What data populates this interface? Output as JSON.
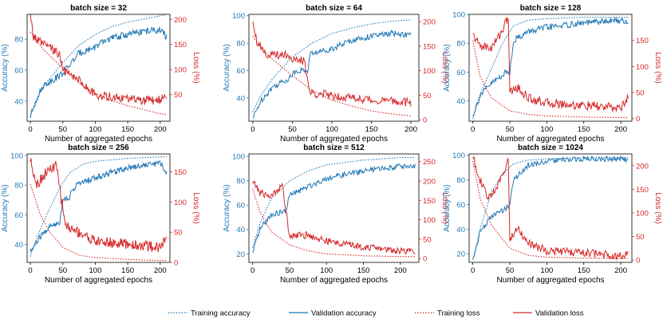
{
  "chart_data": {
    "type": "line",
    "shared_xlabel": "Number of aggregated epochs",
    "shared_y_left_label": "Accuracy (%)",
    "shared_y_right_label": "Loss (%)",
    "legend": [
      {
        "name": "Training accuracy",
        "color": "#1f77b4",
        "dash": "dotted"
      },
      {
        "name": "Validation accuracy",
        "color": "#1f77b4",
        "dash": "solid"
      },
      {
        "name": "Training loss",
        "color": "#d62728",
        "dash": "dotted"
      },
      {
        "name": "Validation loss",
        "color": "#d62728",
        "dash": "solid"
      }
    ],
    "legend_placement": "bottom-center",
    "grid": false,
    "colors": {
      "accuracy": "#1f77b4",
      "loss": "#d62728"
    },
    "panels": [
      {
        "title": "batch size = 32",
        "xlim": [
          -5,
          215
        ],
        "xticks": [
          0,
          50,
          100,
          150,
          200
        ],
        "ylim_left": [
          27,
          96
        ],
        "yticks_left": [
          40,
          60,
          80
        ],
        "ylim_right": [
          -3,
          210
        ],
        "yticks_right": [
          50,
          100,
          150,
          200
        ],
        "training_accuracy": [
          [
            0,
            30
          ],
          [
            10,
            42
          ],
          [
            25,
            52
          ],
          [
            50,
            65
          ],
          [
            75,
            76
          ],
          [
            100,
            83
          ],
          [
            125,
            88
          ],
          [
            150,
            91
          ],
          [
            175,
            93
          ],
          [
            200,
            95
          ],
          [
            210,
            96
          ]
        ],
        "validation_accuracy": [
          [
            0,
            30
          ],
          [
            10,
            42
          ],
          [
            20,
            50
          ],
          [
            35,
            54
          ],
          [
            50,
            58
          ],
          [
            60,
            63
          ],
          [
            75,
            71
          ],
          [
            100,
            75
          ],
          [
            120,
            80
          ],
          [
            150,
            83
          ],
          [
            175,
            85
          ],
          [
            200,
            86
          ],
          [
            210,
            81
          ]
        ],
        "training_loss": [
          [
            0,
            175
          ],
          [
            20,
            140
          ],
          [
            40,
            115
          ],
          [
            60,
            90
          ],
          [
            80,
            68
          ],
          [
            100,
            52
          ],
          [
            125,
            38
          ],
          [
            150,
            28
          ],
          [
            175,
            20
          ],
          [
            200,
            12
          ],
          [
            210,
            10
          ]
        ],
        "validation_loss": [
          [
            0,
            205
          ],
          [
            5,
            165
          ],
          [
            20,
            150
          ],
          [
            35,
            140
          ],
          [
            45,
            130
          ],
          [
            50,
            100
          ],
          [
            60,
            90
          ],
          [
            75,
            80
          ],
          [
            90,
            60
          ],
          [
            100,
            50
          ],
          [
            125,
            45
          ],
          [
            150,
            42
          ],
          [
            175,
            38
          ],
          [
            200,
            40
          ],
          [
            210,
            48
          ]
        ]
      },
      {
        "title": "batch size = 64",
        "xlim": [
          -5,
          210
        ],
        "xticks": [
          0,
          50,
          100,
          150,
          200
        ],
        "ylim_left": [
          23,
          101
        ],
        "yticks_left": [
          40,
          60,
          80,
          100
        ],
        "ylim_right": [
          -3,
          215
        ],
        "yticks_right": [
          0,
          50,
          100,
          150,
          200
        ],
        "training_accuracy": [
          [
            0,
            30
          ],
          [
            10,
            42
          ],
          [
            25,
            54
          ],
          [
            50,
            70
          ],
          [
            75,
            80
          ],
          [
            100,
            87
          ],
          [
            125,
            91
          ],
          [
            150,
            94
          ],
          [
            175,
            96
          ],
          [
            200,
            97
          ]
        ],
        "validation_accuracy": [
          [
            0,
            25
          ],
          [
            10,
            38
          ],
          [
            25,
            48
          ],
          [
            45,
            54
          ],
          [
            55,
            60
          ],
          [
            70,
            60
          ],
          [
            72,
            72
          ],
          [
            100,
            76
          ],
          [
            125,
            82
          ],
          [
            150,
            85
          ],
          [
            175,
            87
          ],
          [
            200,
            86
          ]
        ],
        "training_loss": [
          [
            0,
            170
          ],
          [
            20,
            130
          ],
          [
            50,
            90
          ],
          [
            75,
            60
          ],
          [
            100,
            40
          ],
          [
            125,
            28
          ],
          [
            150,
            18
          ],
          [
            175,
            12
          ],
          [
            200,
            8
          ]
        ],
        "validation_loss": [
          [
            0,
            205
          ],
          [
            5,
            160
          ],
          [
            20,
            130
          ],
          [
            40,
            135
          ],
          [
            55,
            120
          ],
          [
            65,
            120
          ],
          [
            72,
            55
          ],
          [
            100,
            50
          ],
          [
            125,
            45
          ],
          [
            150,
            40
          ],
          [
            175,
            38
          ],
          [
            200,
            35
          ]
        ]
      },
      {
        "title": "batch size = 128",
        "xlim": [
          -5,
          215
        ],
        "xticks": [
          0,
          50,
          100,
          150,
          200
        ],
        "ylim_left": [
          26,
          100
        ],
        "yticks_left": [
          40,
          60,
          80,
          100
        ],
        "ylim_right": [
          -5,
          200
        ],
        "yticks_right": [
          0,
          50,
          100,
          150
        ],
        "training_accuracy": [
          [
            0,
            28
          ],
          [
            10,
            45
          ],
          [
            25,
            62
          ],
          [
            40,
            80
          ],
          [
            55,
            92
          ],
          [
            75,
            96
          ],
          [
            100,
            97
          ],
          [
            150,
            98
          ],
          [
            200,
            98
          ],
          [
            210,
            98
          ]
        ],
        "validation_accuracy": [
          [
            0,
            30
          ],
          [
            10,
            44
          ],
          [
            25,
            52
          ],
          [
            45,
            60
          ],
          [
            50,
            60
          ],
          [
            55,
            82
          ],
          [
            75,
            88
          ],
          [
            100,
            91
          ],
          [
            150,
            94
          ],
          [
            200,
            96
          ],
          [
            210,
            94
          ]
        ],
        "training_loss": [
          [
            0,
            150
          ],
          [
            10,
            80
          ],
          [
            25,
            40
          ],
          [
            50,
            15
          ],
          [
            75,
            8
          ],
          [
            100,
            5
          ],
          [
            150,
            3
          ],
          [
            200,
            2
          ],
          [
            210,
            2
          ]
        ],
        "validation_loss": [
          [
            0,
            160
          ],
          [
            10,
            140
          ],
          [
            25,
            135
          ],
          [
            40,
            170
          ],
          [
            48,
            195
          ],
          [
            50,
            50
          ],
          [
            60,
            60
          ],
          [
            75,
            40
          ],
          [
            100,
            30
          ],
          [
            150,
            25
          ],
          [
            200,
            20
          ],
          [
            210,
            40
          ]
        ]
      },
      {
        "title": "batch size = 256",
        "xlim": [
          -5,
          215
        ],
        "xticks": [
          0,
          50,
          100,
          150,
          200
        ],
        "ylim_left": [
          28,
          101
        ],
        "yticks_left": [
          40,
          60,
          80,
          100
        ],
        "ylim_right": [
          0,
          180
        ],
        "yticks_right": [
          0,
          50,
          100,
          150
        ],
        "training_accuracy": [
          [
            0,
            32
          ],
          [
            10,
            45
          ],
          [
            25,
            60
          ],
          [
            45,
            78
          ],
          [
            60,
            88
          ],
          [
            80,
            94
          ],
          [
            100,
            96
          ],
          [
            150,
            98
          ],
          [
            200,
            99
          ],
          [
            210,
            99
          ]
        ],
        "validation_accuracy": [
          [
            0,
            35
          ],
          [
            15,
            45
          ],
          [
            30,
            52
          ],
          [
            45,
            55
          ],
          [
            50,
            70
          ],
          [
            60,
            72
          ],
          [
            70,
            80
          ],
          [
            100,
            85
          ],
          [
            150,
            92
          ],
          [
            200,
            95
          ],
          [
            210,
            88
          ]
        ],
        "training_loss": [
          [
            0,
            130
          ],
          [
            15,
            80
          ],
          [
            30,
            50
          ],
          [
            50,
            25
          ],
          [
            75,
            12
          ],
          [
            100,
            8
          ],
          [
            150,
            5
          ],
          [
            200,
            3
          ],
          [
            210,
            3
          ]
        ],
        "validation_loss": [
          [
            0,
            170
          ],
          [
            10,
            130
          ],
          [
            25,
            150
          ],
          [
            40,
            160
          ],
          [
            50,
            90
          ],
          [
            55,
            60
          ],
          [
            75,
            50
          ],
          [
            100,
            35
          ],
          [
            150,
            30
          ],
          [
            200,
            25
          ],
          [
            210,
            40
          ]
        ]
      },
      {
        "title": "batch size = 512",
        "xlim": [
          -5,
          225
        ],
        "xticks": [
          0,
          50,
          100,
          150,
          200
        ],
        "ylim_left": [
          13,
          102
        ],
        "yticks_left": [
          20,
          40,
          60,
          80,
          100
        ],
        "ylim_right": [
          -10,
          270
        ],
        "yticks_right": [
          0,
          50,
          100,
          150,
          200,
          250
        ],
        "training_accuracy": [
          [
            0,
            25
          ],
          [
            10,
            45
          ],
          [
            25,
            65
          ],
          [
            50,
            80
          ],
          [
            75,
            88
          ],
          [
            100,
            93
          ],
          [
            150,
            97
          ],
          [
            200,
            99
          ],
          [
            220,
            99
          ]
        ],
        "validation_accuracy": [
          [
            0,
            20
          ],
          [
            10,
            40
          ],
          [
            25,
            52
          ],
          [
            45,
            55
          ],
          [
            50,
            68
          ],
          [
            75,
            75
          ],
          [
            100,
            82
          ],
          [
            150,
            88
          ],
          [
            200,
            92
          ],
          [
            220,
            92
          ]
        ],
        "training_loss": [
          [
            0,
            180
          ],
          [
            10,
            120
          ],
          [
            25,
            70
          ],
          [
            50,
            35
          ],
          [
            75,
            20
          ],
          [
            100,
            12
          ],
          [
            150,
            7
          ],
          [
            200,
            5
          ],
          [
            220,
            5
          ]
        ],
        "validation_loss": [
          [
            0,
            200
          ],
          [
            10,
            170
          ],
          [
            25,
            160
          ],
          [
            40,
            190
          ],
          [
            50,
            60
          ],
          [
            75,
            60
          ],
          [
            100,
            45
          ],
          [
            150,
            30
          ],
          [
            200,
            20
          ],
          [
            220,
            18
          ]
        ]
      },
      {
        "title": "batch size = 1024",
        "xlim": [
          -5,
          215
        ],
        "xticks": [
          0,
          50,
          100,
          150,
          200
        ],
        "ylim_left": [
          13,
          101
        ],
        "yticks_left": [
          20,
          40,
          60,
          80,
          100
        ],
        "ylim_right": [
          -5,
          225
        ],
        "yticks_right": [
          0,
          50,
          100,
          150,
          200
        ],
        "training_accuracy": [
          [
            0,
            15
          ],
          [
            10,
            40
          ],
          [
            25,
            70
          ],
          [
            40,
            85
          ],
          [
            55,
            93
          ],
          [
            75,
            96
          ],
          [
            100,
            97
          ],
          [
            150,
            98
          ],
          [
            200,
            98
          ],
          [
            210,
            98
          ]
        ],
        "validation_accuracy": [
          [
            0,
            15
          ],
          [
            10,
            38
          ],
          [
            25,
            50
          ],
          [
            45,
            57
          ],
          [
            50,
            60
          ],
          [
            55,
            80
          ],
          [
            75,
            92
          ],
          [
            100,
            95
          ],
          [
            150,
            97
          ],
          [
            200,
            97
          ],
          [
            210,
            96
          ]
        ],
        "training_loss": [
          [
            0,
            210
          ],
          [
            10,
            130
          ],
          [
            25,
            75
          ],
          [
            50,
            25
          ],
          [
            75,
            10
          ],
          [
            100,
            6
          ],
          [
            150,
            4
          ],
          [
            200,
            3
          ],
          [
            210,
            3
          ]
        ],
        "validation_loss": [
          [
            0,
            220
          ],
          [
            10,
            170
          ],
          [
            20,
            130
          ],
          [
            35,
            160
          ],
          [
            48,
            215
          ],
          [
            50,
            40
          ],
          [
            60,
            70
          ],
          [
            75,
            35
          ],
          [
            100,
            20
          ],
          [
            150,
            15
          ],
          [
            200,
            10
          ],
          [
            210,
            10
          ]
        ]
      }
    ]
  }
}
